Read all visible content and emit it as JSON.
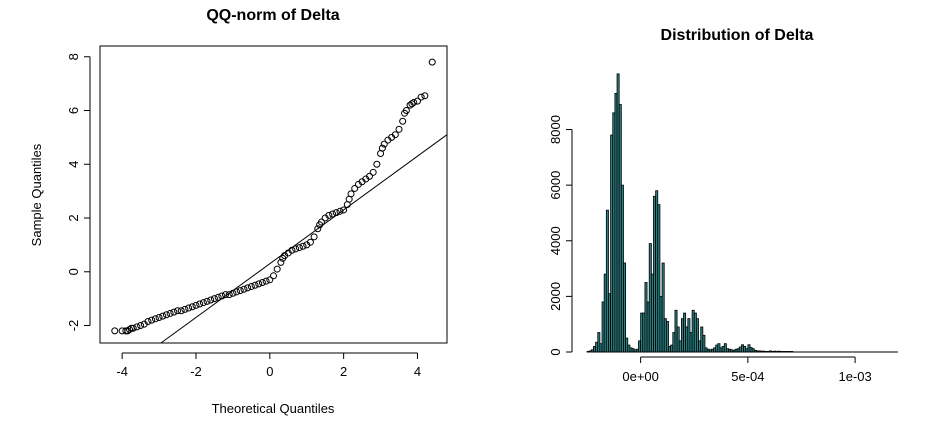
{
  "chart_data": [
    {
      "type": "scatter",
      "title": "QQ-norm of Delta",
      "xlabel": "Theoretical Quantiles",
      "ylabel": "Sample Quantiles",
      "xlim": [
        -4.6,
        4.8
      ],
      "ylim": [
        -2.65,
        8.4
      ],
      "xticks": [
        -4,
        -2,
        0,
        2,
        4
      ],
      "xtick_labels": [
        "-4",
        "-2",
        "0",
        "2",
        "4"
      ],
      "yticks": [
        -2,
        0,
        2,
        4,
        6,
        8
      ],
      "ytick_labels": [
        "-2",
        "0",
        "2",
        "4",
        "6",
        "8"
      ],
      "marker": "open-circle",
      "series": [
        {
          "x": [
            -4.2,
            -4.0,
            -3.9,
            -3.85,
            -3.8,
            -3.75,
            -3.7,
            -3.6,
            -3.5,
            -3.4,
            -3.3,
            -3.2,
            -3.1,
            -3.0,
            -2.9,
            -2.8,
            -2.7,
            -2.6,
            -2.5,
            -2.4,
            -2.3,
            -2.2,
            -2.1,
            -2.0,
            -1.9,
            -1.8,
            -1.7,
            -1.6,
            -1.5,
            -1.4,
            -1.3,
            -1.2,
            -1.1,
            -1.0,
            -0.9,
            -0.8,
            -0.7,
            -0.6,
            -0.5,
            -0.4,
            -0.3,
            -0.2,
            -0.1,
            0.0,
            0.1,
            0.2,
            0.3,
            0.35,
            0.4,
            0.5,
            0.6,
            0.7,
            0.8,
            0.9,
            1.0,
            1.1,
            1.2,
            1.3,
            1.35,
            1.4,
            1.5,
            1.6,
            1.7,
            1.8,
            1.9,
            2.0,
            2.1,
            2.15,
            2.2,
            2.3,
            2.4,
            2.5,
            2.6,
            2.7,
            2.8,
            2.9,
            3.0,
            3.05,
            3.1,
            3.2,
            3.3,
            3.4,
            3.5,
            3.6,
            3.65,
            3.7,
            3.8,
            3.85,
            3.9,
            4.0,
            4.1,
            4.2,
            4.4
          ],
          "y": [
            -2.2,
            -2.2,
            -2.2,
            -2.2,
            -2.15,
            -2.1,
            -2.1,
            -2.05,
            -2.0,
            -1.95,
            -1.85,
            -1.8,
            -1.75,
            -1.7,
            -1.65,
            -1.6,
            -1.55,
            -1.5,
            -1.45,
            -1.45,
            -1.4,
            -1.35,
            -1.3,
            -1.25,
            -1.2,
            -1.15,
            -1.1,
            -1.05,
            -1.0,
            -0.95,
            -0.9,
            -0.85,
            -0.85,
            -0.8,
            -0.75,
            -0.7,
            -0.65,
            -0.6,
            -0.55,
            -0.5,
            -0.45,
            -0.4,
            -0.35,
            -0.3,
            -0.15,
            0.1,
            0.35,
            0.5,
            0.6,
            0.7,
            0.8,
            0.85,
            0.9,
            0.95,
            1.0,
            1.1,
            1.3,
            1.6,
            1.75,
            1.85,
            2.0,
            2.1,
            2.15,
            2.2,
            2.25,
            2.3,
            2.5,
            2.7,
            2.9,
            3.1,
            3.25,
            3.35,
            3.45,
            3.55,
            3.7,
            4.0,
            4.4,
            4.6,
            4.75,
            4.9,
            5.0,
            5.1,
            5.3,
            5.6,
            5.9,
            6.0,
            6.2,
            6.25,
            6.3,
            6.35,
            6.5,
            6.55,
            7.8
          ]
        }
      ],
      "reference_line": {
        "intercept": 0.3,
        "slope": 1.0
      }
    },
    {
      "type": "bar",
      "title": "Distribution of Delta",
      "xlabel": "",
      "ylabel": "",
      "xlim": [
        -0.00032,
        0.0012
      ],
      "ylim": [
        0,
        10500
      ],
      "xticks": [
        0,
        0.0005,
        0.001
      ],
      "xtick_labels": [
        "0e+00",
        "5e-04",
        "1e-03"
      ],
      "yticks": [
        0,
        2000,
        4000,
        6000,
        8000
      ],
      "ytick_labels": [
        "0",
        "2000",
        "4000",
        "6000",
        "8000"
      ],
      "bar_color": "#2b8083",
      "bin_width": 1e-05,
      "x": [
        -0.00025,
        -0.00024,
        -0.00023,
        -0.00022,
        -0.00021,
        -0.0002,
        -0.00019,
        -0.00018,
        -0.00017,
        -0.00016,
        -0.00015,
        -0.00014,
        -0.00013,
        -0.00012,
        -0.00011,
        -0.0001,
        -9e-05,
        -8e-05,
        -7e-05,
        -6e-05,
        -5e-05,
        -4e-05,
        -3e-05,
        -2e-05,
        -1e-05,
        0.0,
        1e-05,
        2e-05,
        3e-05,
        4e-05,
        5e-05,
        6e-05,
        7e-05,
        8e-05,
        9e-05,
        0.0001,
        0.00011,
        0.00012,
        0.00013,
        0.00014,
        0.00015,
        0.00016,
        0.00017,
        0.00018,
        0.00019,
        0.0002,
        0.00021,
        0.00022,
        0.00023,
        0.00024,
        0.00025,
        0.00026,
        0.00027,
        0.00028,
        0.00029,
        0.0003,
        0.00031,
        0.00032,
        0.00033,
        0.00034,
        0.00035,
        0.00036,
        0.00037,
        0.00038,
        0.00039,
        0.0004,
        0.00041,
        0.00042,
        0.00043,
        0.00044,
        0.00045,
        0.00046,
        0.00047,
        0.00048,
        0.00049,
        0.0005,
        0.00051,
        0.00052,
        0.00053,
        0.00054,
        0.00055,
        0.00056,
        0.00057,
        0.00058,
        0.00059,
        0.0006,
        0.00061,
        0.00062,
        0.00063,
        0.00064,
        0.00065,
        0.00066,
        0.00067,
        0.00068,
        0.00069,
        0.0007
      ],
      "values": [
        20,
        40,
        80,
        200,
        350,
        700,
        300,
        1800,
        2800,
        5100,
        2100,
        7800,
        8600,
        9300,
        10000,
        8900,
        6000,
        3200,
        500,
        250,
        150,
        120,
        80,
        100,
        400,
        1400,
        1400,
        2500,
        1800,
        3900,
        2800,
        5600,
        5800,
        5300,
        2000,
        3200,
        1200,
        1100,
        200,
        250,
        700,
        1500,
        900,
        400,
        1200,
        1400,
        900,
        1200,
        700,
        1500,
        1400,
        1200,
        400,
        900,
        600,
        150,
        100,
        80,
        100,
        150,
        250,
        300,
        150,
        200,
        300,
        120,
        100,
        80,
        60,
        100,
        120,
        180,
        260,
        200,
        120,
        260,
        160,
        120,
        60,
        40,
        40,
        30,
        30,
        20,
        20,
        40,
        20,
        30,
        20,
        30,
        20,
        20,
        20,
        20,
        20,
        20
      ]
    }
  ]
}
